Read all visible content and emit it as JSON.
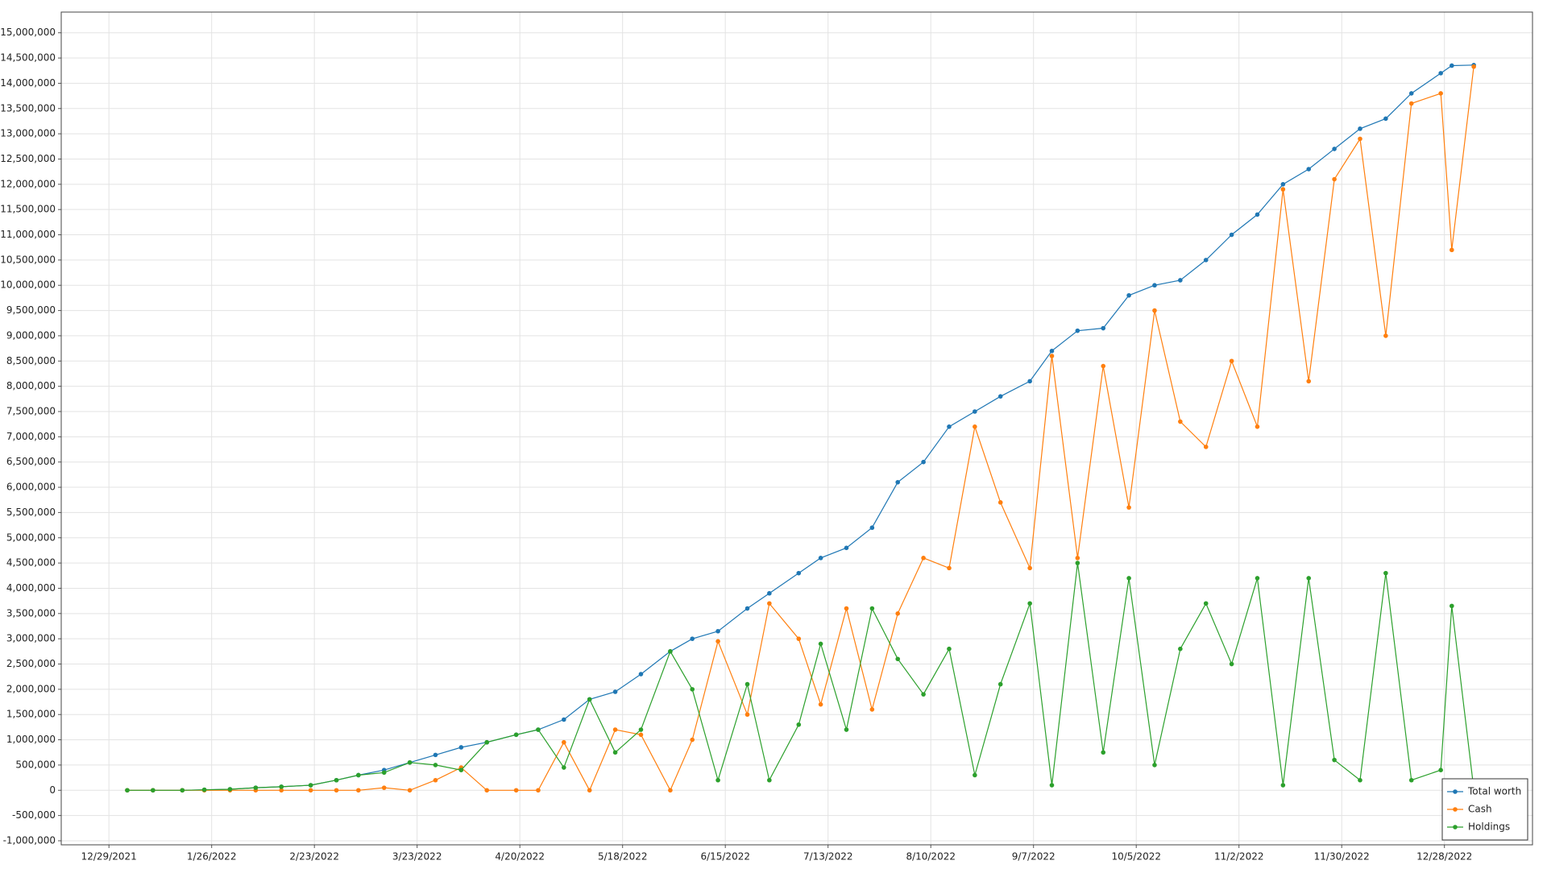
{
  "chart_data": {
    "type": "line",
    "x": [
      "1/3/2022",
      "1/10/2022",
      "1/18/2022",
      "1/24/2022",
      "1/31/2022",
      "2/7/2022",
      "2/14/2022",
      "2/22/2022",
      "3/1/2022",
      "3/7/2022",
      "3/14/2022",
      "3/21/2022",
      "3/28/2022",
      "4/4/2022",
      "4/11/2022",
      "4/19/2022",
      "4/25/2022",
      "5/2/2022",
      "5/9/2022",
      "5/16/2022",
      "5/23/2022",
      "5/31/2022",
      "6/6/2022",
      "6/13/2022",
      "6/21/2022",
      "6/27/2022",
      "7/5/2022",
      "7/11/2022",
      "7/18/2022",
      "7/25/2022",
      "8/1/2022",
      "8/8/2022",
      "8/15/2022",
      "8/22/2022",
      "8/29/2022",
      "9/6/2022",
      "9/12/2022",
      "9/19/2022",
      "9/26/2022",
      "10/3/2022",
      "10/10/2022",
      "10/17/2022",
      "10/24/2022",
      "10/31/2022",
      "11/7/2022",
      "11/14/2022",
      "11/21/2022",
      "11/28/2022",
      "12/5/2022",
      "12/12/2022",
      "12/19/2022",
      "12/27/2022",
      "12/30/2022",
      "1/5/2023"
    ],
    "series": [
      {
        "name": "Total worth",
        "color": "#1f77b4",
        "values": [
          0,
          0,
          0,
          10000,
          20000,
          50000,
          70000,
          100000,
          200000,
          300000,
          400000,
          550000,
          700000,
          850000,
          950000,
          1100000,
          1200000,
          1400000,
          1800000,
          1950000,
          2300000,
          2750000,
          3000000,
          3150000,
          3600000,
          3900000,
          4300000,
          4600000,
          4800000,
          5200000,
          6100000,
          6500000,
          7200000,
          7500000,
          7800000,
          8100000,
          8700000,
          9100000,
          9150000,
          9800000,
          10000000,
          10100000,
          10500000,
          11000000,
          11400000,
          12000000,
          12300000,
          12700000,
          13100000,
          13300000,
          13800000,
          14200000,
          14350000,
          14360000
        ]
      },
      {
        "name": "Cash",
        "color": "#ff7f0e",
        "values": [
          0,
          0,
          0,
          0,
          0,
          0,
          0,
          0,
          0,
          0,
          50000,
          0,
          200000,
          450000,
          0,
          0,
          0,
          950000,
          0,
          1200000,
          1100000,
          0,
          1000000,
          2950000,
          1500000,
          3700000,
          3000000,
          1700000,
          3600000,
          1600000,
          3500000,
          4600000,
          4400000,
          7200000,
          5700000,
          4400000,
          8600000,
          4600000,
          8400000,
          5600000,
          9500000,
          7300000,
          6800000,
          8500000,
          7200000,
          11900000,
          8100000,
          12100000,
          12900000,
          9000000,
          13600000,
          13800000,
          10700000,
          14330000
        ]
      },
      {
        "name": "Holdings",
        "color": "#2ca02c",
        "values": [
          0,
          0,
          0,
          10000,
          20000,
          50000,
          70000,
          100000,
          200000,
          300000,
          350000,
          550000,
          500000,
          400000,
          950000,
          1100000,
          1200000,
          450000,
          1800000,
          750000,
          1200000,
          2750000,
          2000000,
          200000,
          2100000,
          200000,
          1300000,
          2900000,
          1200000,
          3600000,
          2600000,
          1900000,
          2800000,
          300000,
          2100000,
          3700000,
          100000,
          4500000,
          750000,
          4200000,
          500000,
          2800000,
          3700000,
          2500000,
          4200000,
          100000,
          4200000,
          600000,
          200000,
          4300000,
          200000,
          400000,
          3650000,
          30000
        ]
      }
    ],
    "xlim": [
      "12/16/2021",
      "1/21/2023"
    ],
    "xticks": [
      "12/29/2021",
      "1/26/2022",
      "2/23/2022",
      "3/23/2022",
      "4/20/2022",
      "5/18/2022",
      "6/15/2022",
      "7/13/2022",
      "8/10/2022",
      "9/7/2022",
      "10/5/2022",
      "11/2/2022",
      "11/30/2022",
      "12/28/2022"
    ],
    "ylim": [
      -1080000,
      15410000
    ],
    "yticks": [
      {
        "value": -1000000,
        "label": "-1,000,000"
      },
      {
        "value": -500000,
        "label": "-500,000"
      },
      0,
      {
        "value": 500000,
        "label": "500,000"
      },
      {
        "value": 1000000,
        "label": "1,000,000"
      },
      {
        "value": 1500000,
        "label": "1,500,000"
      },
      {
        "value": 2000000,
        "label": "2,000,000"
      },
      {
        "value": 2500000,
        "label": "2,500,000"
      },
      {
        "value": 3000000,
        "label": "3,000,000"
      },
      {
        "value": 3500000,
        "label": "3,500,000"
      },
      {
        "value": 4000000,
        "label": "4,000,000"
      },
      {
        "value": 4500000,
        "label": "4,500,000"
      },
      {
        "value": 5000000,
        "label": "5,000,000"
      },
      {
        "value": 5500000,
        "label": "5,500,000"
      },
      {
        "value": 6000000,
        "label": "6,000,000"
      },
      {
        "value": 6500000,
        "label": "6,500,000"
      },
      {
        "value": 7000000,
        "label": "7,000,000"
      },
      {
        "value": 7500000,
        "label": "7,500,000"
      },
      {
        "value": 8000000,
        "label": "8,000,000"
      },
      {
        "value": 8500000,
        "label": "8,500,000"
      },
      {
        "value": 9000000,
        "label": "9,000,000"
      },
      {
        "value": 9500000,
        "label": "9,500,000"
      },
      {
        "value": 10000000,
        "label": "10,000,000"
      },
      {
        "value": 10500000,
        "label": "10,500,000"
      },
      {
        "value": 11000000,
        "label": "11,000,000"
      },
      {
        "value": 11500000,
        "label": "11,500,000"
      },
      {
        "value": 12000000,
        "label": "12,000,000"
      },
      {
        "value": 12500000,
        "label": "12,500,000"
      },
      {
        "value": 13000000,
        "label": "13,000,000"
      },
      {
        "value": 13500000,
        "label": "13,500,000"
      },
      {
        "value": 14000000,
        "label": "14,000,000"
      },
      {
        "value": 14500000,
        "label": "14,500,000"
      },
      {
        "value": 15000000,
        "label": "15,000,000"
      }
    ],
    "grid": true,
    "legend": "lower-right"
  }
}
